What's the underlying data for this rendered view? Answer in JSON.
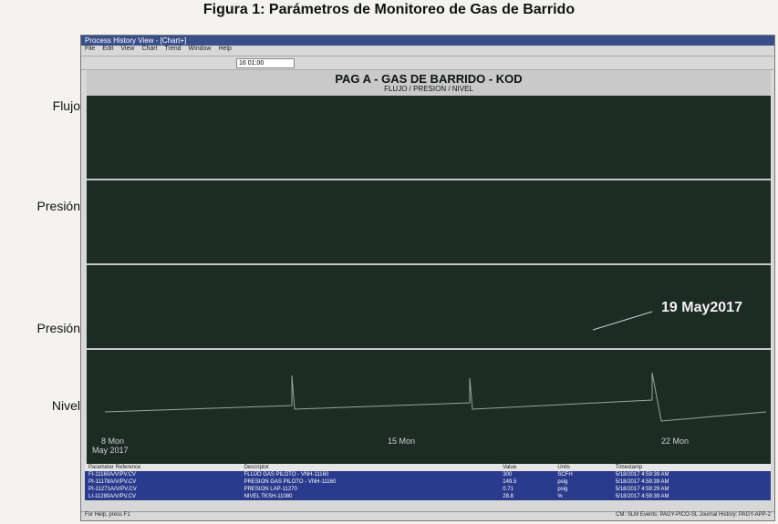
{
  "figure_title": "Figura 1: Parámetros de Monitoreo de Gas de Barrido",
  "side_labels": [
    "Flujo",
    "Presión",
    "Presión",
    "Nivel"
  ],
  "window": {
    "title": "Process History View - [Chart+]",
    "menu": [
      "File",
      "Edit",
      "View",
      "Chart",
      "Trend",
      "Window",
      "Help"
    ],
    "time": "16 01:00"
  },
  "chart": {
    "title": "PAG A - GAS DE BARRIDO - KOD",
    "subtitle": "FLUJO / PRESION / NIVEL",
    "annotation": "19 May2017",
    "x_labels": [
      "8 Mon",
      "15 Mon",
      "22 Mon"
    ],
    "x_sublabel": "May 2017"
  },
  "table": {
    "headers": [
      "Parameter Reference",
      "Descriptor",
      "Value",
      "Units",
      "Timestamp"
    ],
    "rows": [
      [
        "FI-11160A/V/PV.CV",
        "FLUJO GAS PILOTO - VNH-11160",
        "300",
        "SCFH",
        "5/18/2017 4:59:39 AM"
      ],
      [
        "PI-11178A/V/PV.CV",
        "PRESION GAS PILOTO - VNH-11160",
        "149.5",
        "psig",
        "5/18/2017 4:59:39 AM"
      ],
      [
        "PI-11271A/V/PV.CV",
        "PRESION LAP-11270",
        "0.71",
        "psig",
        "5/18/2017 4:59:29 AM"
      ],
      [
        "LI-11280A/V/PV.CV",
        "NIVEL TKSH-11080",
        "28.8",
        "%",
        "5/18/2017 4:59:39 AM"
      ]
    ]
  },
  "status": {
    "left": "For Help, press F1",
    "right": "CM: SLM  Events: PAGY-PICO-SL  Journal History: PAGY-APP-2"
  }
}
